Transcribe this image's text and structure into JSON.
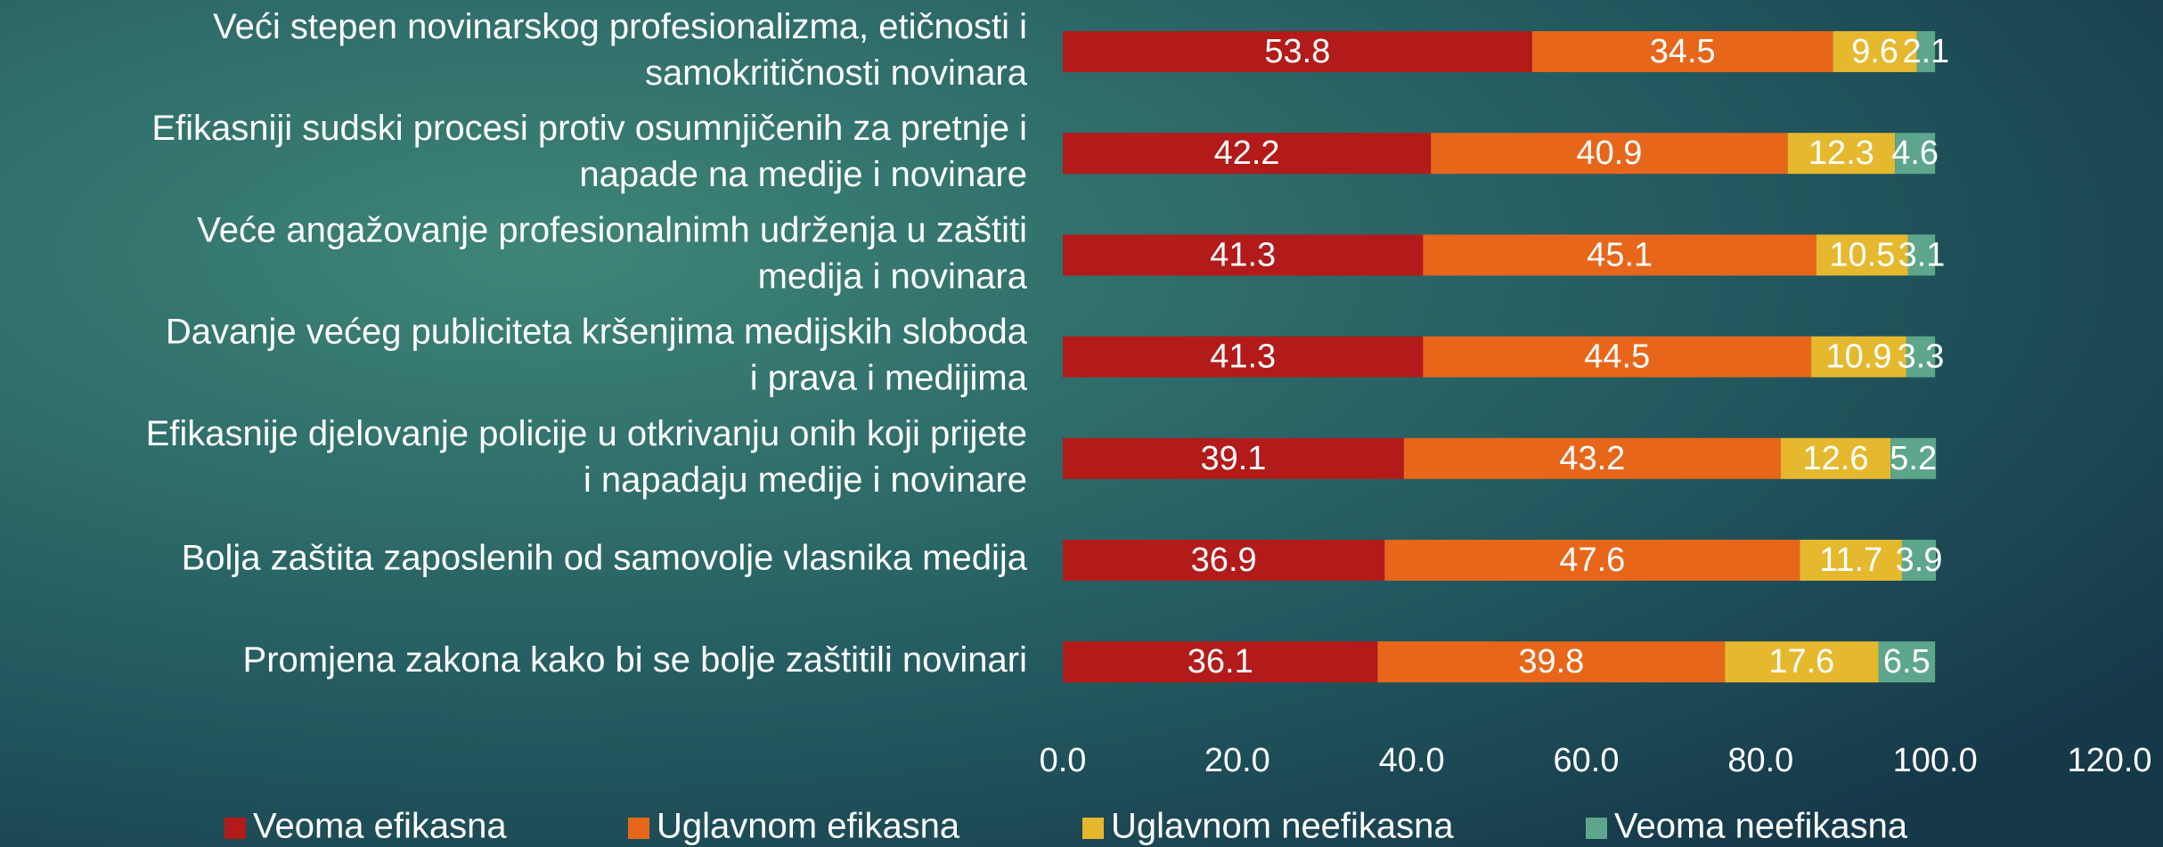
{
  "chart_data": {
    "type": "stacked-bar-horizontal",
    "categories": [
      "Veći stepen novinarskog profesionalizma, etičnosti i\nsamokritičnosti novinara",
      "Efikasniji sudski procesi protiv osumnjičenih za pretnje i\nnapade na medije i novinare",
      "Veće angažovanje profesionalnimh udrženja u zaštiti\nmedija i novinara",
      "Davanje većeg publiciteta kršenjima medijskih sloboda\ni prava i medijima",
      "Efikasnije djelovanje policije u otkrivanju onih koji prijete\ni napadaju medije i novinare",
      "Bolja zaštita zaposlenih od samovolje vlasnika medija",
      "Promjena zakona kako bi se bolje zaštitili novinari"
    ],
    "series": [
      {
        "name": "Veoma efikasna",
        "color": "#b31a1a",
        "values": [
          53.8,
          42.2,
          41.3,
          41.3,
          39.1,
          36.9,
          36.1
        ]
      },
      {
        "name": "Uglavnom efikasna",
        "color": "#e8661a",
        "values": [
          34.5,
          40.9,
          45.1,
          44.5,
          43.2,
          47.6,
          39.8
        ]
      },
      {
        "name": "Uglavnom neefikasna",
        "color": "#e6b82e",
        "values": [
          9.6,
          12.3,
          10.5,
          10.9,
          12.6,
          11.7,
          17.6
        ]
      },
      {
        "name": "Veoma neefikasna",
        "color": "#5ea68b",
        "values": [
          2.1,
          4.6,
          3.1,
          3.3,
          5.2,
          3.9,
          6.5
        ]
      }
    ],
    "xlim": [
      0,
      120
    ],
    "xticks": [
      {
        "value": 0,
        "label": "0.0"
      },
      {
        "value": 20,
        "label": "20.0"
      },
      {
        "value": 40,
        "label": "40.0"
      },
      {
        "value": 60,
        "label": "60.0"
      },
      {
        "value": 80,
        "label": "80.0"
      },
      {
        "value": 100,
        "label": "100.0"
      },
      {
        "value": 120,
        "label": "120.0"
      }
    ],
    "legend": "bottom"
  }
}
